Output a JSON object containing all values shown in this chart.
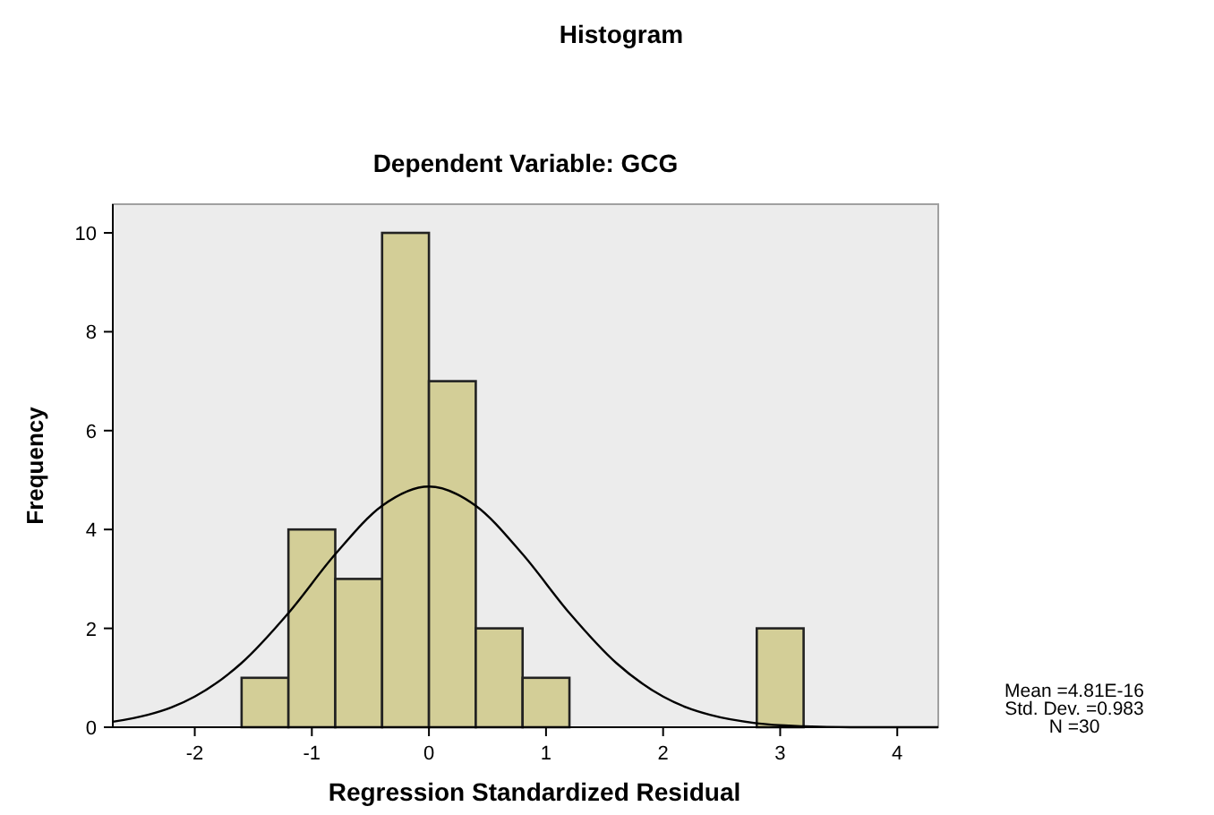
{
  "chart_data": {
    "type": "histogram",
    "title": "Histogram",
    "subtitle": "Dependent Variable: GCG",
    "xlabel": "Regression Standardized Residual",
    "ylabel": "Frequency",
    "bins": [
      -1.6,
      -1.2,
      -0.8,
      -0.4,
      0,
      0.4,
      0.8,
      1.2,
      1.6,
      2.0,
      2.4,
      2.8,
      3.2
    ],
    "values": [
      1,
      4,
      3,
      10,
      7,
      2,
      1,
      0,
      0,
      0,
      0,
      2
    ],
    "color": "#d3ce97",
    "series": [
      {
        "type": "line",
        "color": "#000000",
        "x": [
          -2.7,
          -2.4,
          -2.2,
          -2.0,
          -1.6,
          -1.2,
          -0.8,
          -0.4,
          0,
          0.4,
          0.8,
          1.2,
          1.6,
          2.0,
          2.2,
          2.4,
          2.8,
          3.2,
          3.6,
          4.0,
          4.35
        ],
        "values": [
          0.11,
          0.25,
          0.4,
          0.62,
          1.3,
          2.31,
          3.5,
          4.48,
          4.87,
          4.48,
          3.5,
          2.31,
          1.3,
          0.62,
          0.4,
          0.25,
          0.08,
          0.02,
          0,
          0,
          0
        ]
      }
    ],
    "xlim": [
      -2.7,
      4.35
    ],
    "xticks": [
      -2,
      -1,
      0,
      1,
      2,
      3,
      4
    ],
    "ylim": [
      0,
      10.58
    ],
    "yticks": [
      0,
      2,
      4,
      6,
      8,
      10
    ],
    "grid": false,
    "annotations": [
      "Mean =4.81E-16",
      "Std. Dev. =0.983",
      "N =30"
    ]
  }
}
